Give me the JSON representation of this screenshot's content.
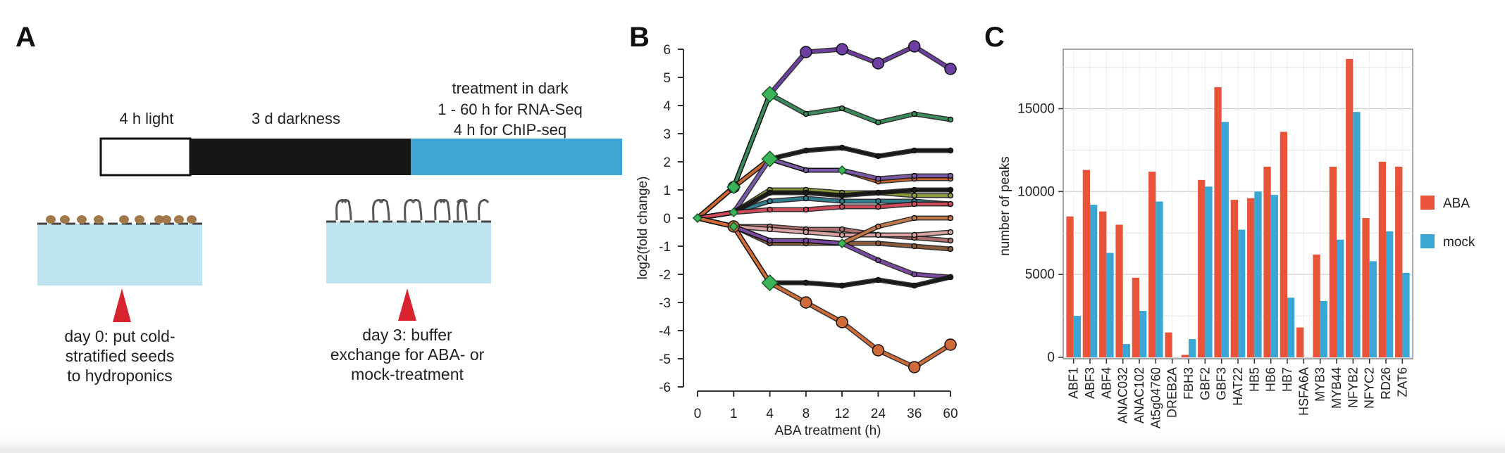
{
  "panel_a": {
    "letter": "A",
    "timeline": {
      "light_label": "4 h light",
      "dark_label": "3 d darkness",
      "treatment_lines": [
        "treatment in dark",
        "1 - 60 h for RNA-Seq",
        "4 h for ChIP-seq"
      ]
    },
    "steps": [
      {
        "lines": [
          "day 0: put cold-",
          "stratified seeds",
          "to hydroponics"
        ]
      },
      {
        "lines": [
          "day 3: buffer",
          "exchange for ABA- or",
          "mock-treatment"
        ]
      }
    ],
    "colors": {
      "treatment_bar": "#3fa5d4",
      "tray_water": "#bfe4f0",
      "arrow": "#d9242f",
      "seed": "#a0784a"
    }
  },
  "panel_b": {
    "letter": "B",
    "chart_data": {
      "type": "line",
      "xlabel": "ABA treatment (h)",
      "ylabel": "log2(fold change)",
      "x": [
        "0",
        "1",
        "4",
        "8",
        "12",
        "24",
        "36",
        "60"
      ],
      "ylim": [
        -6,
        6
      ],
      "yticks": [
        6,
        5,
        4,
        3,
        2,
        1,
        0,
        -1,
        -2,
        -3,
        -4,
        -5,
        -6
      ],
      "series": [
        {
          "color": "#6e3fa3",
          "values": [
            0,
            1.1,
            4.4,
            5.9,
            6.0,
            5.5,
            6.1,
            5.3
          ]
        },
        {
          "color": "#3a8a5c",
          "values": [
            0,
            1.1,
            4.4,
            3.7,
            3.9,
            3.4,
            3.7,
            3.5
          ]
        },
        {
          "color": "#1a1a1a",
          "values": [
            0,
            1.1,
            2.1,
            2.4,
            2.5,
            2.2,
            2.4,
            2.4
          ]
        },
        {
          "color": "#c9652f",
          "values": [
            0,
            1.1,
            2.1,
            1.7,
            1.7,
            1.3,
            1.4,
            1.4
          ]
        },
        {
          "color": "#7a5aa6",
          "values": [
            0,
            0.2,
            2.1,
            1.7,
            1.7,
            1.4,
            1.5,
            1.5
          ]
        },
        {
          "color": "#8f9a3a",
          "values": [
            0,
            0.2,
            1.0,
            1.0,
            0.9,
            0.9,
            0.8,
            0.8
          ]
        },
        {
          "color": "#2f7f8f",
          "values": [
            0,
            0.2,
            0.6,
            0.7,
            0.6,
            0.6,
            0.6,
            0.5
          ]
        },
        {
          "color": "#1a1a1a",
          "values": [
            0,
            0.2,
            0.9,
            0.9,
            0.8,
            0.9,
            1.0,
            1.0
          ]
        },
        {
          "color": "#d04a5a",
          "values": [
            0,
            0.2,
            0.3,
            0.3,
            0.4,
            0.4,
            0.5,
            0.5
          ]
        },
        {
          "color": "#b07070",
          "values": [
            0,
            -0.3,
            -0.3,
            -0.4,
            -0.4,
            -0.6,
            -0.7,
            -0.8
          ]
        },
        {
          "color": "#d9a3a3",
          "values": [
            0,
            -0.3,
            -0.4,
            -0.5,
            -0.6,
            -0.6,
            -0.6,
            -0.5
          ]
        },
        {
          "color": "#8a5a3a",
          "values": [
            0,
            -0.3,
            -0.9,
            -0.9,
            -0.9,
            -0.9,
            -1.0,
            -1.1
          ]
        },
        {
          "color": "#c0784a",
          "values": [
            0,
            -0.3,
            -0.8,
            -0.8,
            -0.9,
            -0.3,
            0.0,
            0.0
          ]
        },
        {
          "color": "#7a4aa0",
          "values": [
            0,
            -0.3,
            -0.8,
            -0.8,
            -0.9,
            -1.5,
            -2.0,
            -2.1
          ]
        },
        {
          "color": "#1a1a1a",
          "values": [
            0,
            -0.3,
            -2.3,
            -2.3,
            -2.4,
            -2.2,
            -2.4,
            -2.1
          ]
        },
        {
          "color": "#d06a38",
          "values": [
            0,
            -0.3,
            -2.3,
            -3.0,
            -3.7,
            -4.7,
            -5.3,
            -4.5
          ]
        }
      ]
    }
  },
  "panel_c": {
    "letter": "C",
    "chart_data": {
      "type": "bar",
      "ylabel": "number of peaks",
      "ylim": [
        0,
        18500
      ],
      "yticks": [
        0,
        5000,
        10000,
        15000
      ],
      "categories": [
        "ABF1",
        "ABF3",
        "ABF4",
        "ANAC032",
        "ANAC102",
        "At5g04760",
        "DREB2A",
        "FBH3",
        "GBF2",
        "GBF3",
        "HAT22",
        "HB5",
        "HB6",
        "HB7",
        "HSFA6A",
        "MYB3",
        "MYB44",
        "NFYB2",
        "NFYC2",
        "RD26",
        "ZAT6"
      ],
      "series": [
        {
          "name": "ABA",
          "color": "#e8533a",
          "values": [
            8500,
            11300,
            8800,
            8000,
            4800,
            11200,
            1500,
            150,
            10700,
            16300,
            9500,
            9600,
            11500,
            13600,
            1800,
            6200,
            11500,
            18000,
            8400,
            11800,
            11500
          ]
        },
        {
          "name": "mock",
          "color": "#3aa6d4",
          "values": [
            2500,
            9200,
            6300,
            800,
            2800,
            9400,
            0,
            1100,
            10300,
            14200,
            7700,
            10000,
            9800,
            3600,
            0,
            3400,
            7100,
            14800,
            5800,
            7600,
            5100
          ]
        }
      ],
      "legend_position": "right"
    }
  }
}
